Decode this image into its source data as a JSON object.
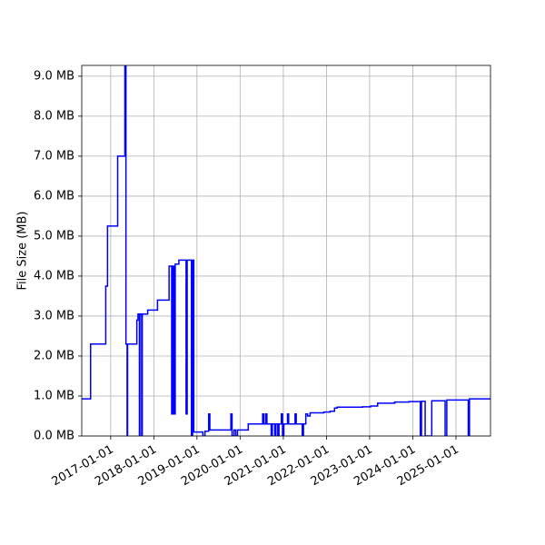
{
  "chart_data": {
    "type": "line",
    "drawstyle": "steps-post",
    "ylabel": "File Size (MB)",
    "x": [
      "2016-05-01",
      "2016-07-15",
      "2016-11-20",
      "2016-12-05",
      "2017-03-01",
      "2017-05-01",
      "2017-05-10",
      "2017-05-20",
      "2017-05-24",
      "2017-08-10",
      "2017-08-20",
      "2017-09-01",
      "2017-09-05",
      "2017-09-20",
      "2017-09-25",
      "2017-11-10",
      "2018-02-01",
      "2018-05-10",
      "2018-06-01",
      "2018-06-10",
      "2018-06-20",
      "2018-07-01",
      "2018-08-01",
      "2018-10-01",
      "2018-10-10",
      "2018-11-15",
      "2018-11-25",
      "2018-12-05",
      "2019-02-20",
      "2019-03-10",
      "2019-04-10",
      "2019-04-20",
      "2019-10-15",
      "2019-10-25",
      "2019-11-10",
      "2019-11-25",
      "2019-12-10",
      "2020-03-10",
      "2020-07-10",
      "2020-07-20",
      "2020-08-05",
      "2020-08-15",
      "2020-09-20",
      "2020-09-30",
      "2020-10-20",
      "2020-10-30",
      "2020-11-15",
      "2020-11-25",
      "2020-12-15",
      "2020-12-25",
      "2021-01-05",
      "2021-02-05",
      "2021-02-15",
      "2021-04-10",
      "2021-04-20",
      "2021-06-10",
      "2021-06-20",
      "2021-07-10",
      "2021-07-25",
      "2021-08-15",
      "2021-12-10",
      "2022-02-01",
      "2022-03-10",
      "2022-04-01",
      "2022-11-01",
      "2023-01-10",
      "2023-03-10",
      "2023-08-01",
      "2023-12-01",
      "2024-03-05",
      "2024-03-15",
      "2024-04-15",
      "2024-06-10",
      "2024-10-01",
      "2024-10-15",
      "2025-04-15",
      "2025-04-25"
    ],
    "series": [
      {
        "color": "#0000ff",
        "values": [
          0.93,
          2.3,
          3.75,
          5.25,
          7.0,
          9.5,
          2.3,
          0,
          2.3,
          2.9,
          3.05,
          0,
          3.05,
          0,
          3.05,
          3.15,
          3.4,
          4.25,
          0.55,
          4.25,
          0.55,
          4.3,
          4.4,
          0.55,
          4.4,
          0,
          4.4,
          0.1,
          0,
          0.12,
          0.55,
          0.15,
          0.55,
          0,
          0.15,
          0,
          0.15,
          0.3,
          0.55,
          0.3,
          0.55,
          0.3,
          0,
          0.3,
          0,
          0.3,
          0,
          0.3,
          0.55,
          0,
          0.3,
          0.55,
          0.3,
          0.55,
          0.3,
          0,
          0.3,
          0.55,
          0.5,
          0.58,
          0.6,
          0.62,
          0.7,
          0.72,
          0.73,
          0.75,
          0.82,
          0.85,
          0.86,
          0,
          0.87,
          0,
          0.88,
          0,
          0.9,
          0,
          0.93
        ]
      }
    ],
    "xlim": [
      "2016-05-01",
      "2025-10-20"
    ],
    "xticks": [
      "2017-01-01",
      "2018-01-01",
      "2019-01-01",
      "2020-01-01",
      "2021-01-01",
      "2022-01-01",
      "2023-01-01",
      "2024-01-01",
      "2025-01-01"
    ],
    "ylim": [
      0,
      9.27
    ],
    "yticks": [
      {
        "value": 0,
        "label": "0.0 MB"
      },
      {
        "value": 1,
        "label": "1.0 MB"
      },
      {
        "value": 2,
        "label": "2.0 MB"
      },
      {
        "value": 3,
        "label": "3.0 MB"
      },
      {
        "value": 4,
        "label": "4.0 MB"
      },
      {
        "value": 5,
        "label": "5.0 MB"
      },
      {
        "value": 6,
        "label": "6.0 MB"
      },
      {
        "value": 7,
        "label": "7.0 MB"
      },
      {
        "value": 8,
        "label": "8.0 MB"
      },
      {
        "value": 9,
        "label": "9.0 MB"
      }
    ],
    "grid": true
  }
}
